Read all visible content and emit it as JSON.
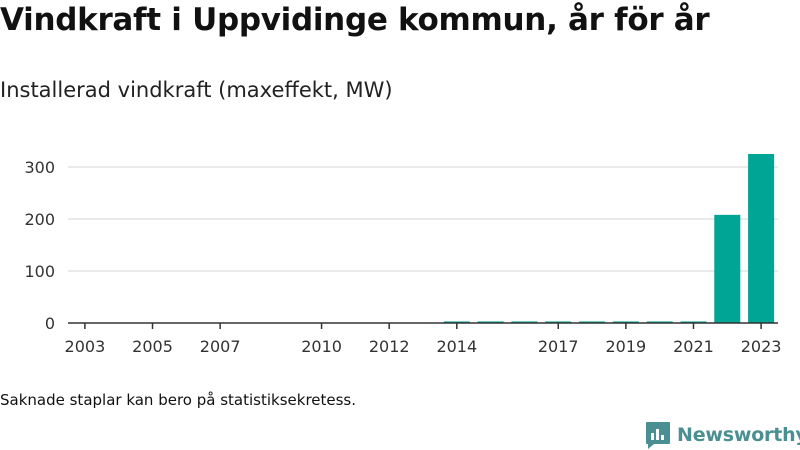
{
  "title": "Vindkraft i Uppvidinge kommun, år för år",
  "subtitle": "Installerad vindkraft (maxeffekt, MW)",
  "footnote": "Saknade staplar kan bero på statistiksekretess.",
  "brand": {
    "name": "Newsworthy",
    "icon": "newsworthy-logo-icon"
  },
  "colors": {
    "bar": "#00a595",
    "grid": "#dddddd",
    "axis": "#333333",
    "text": "#333333"
  },
  "chart_data": {
    "type": "bar",
    "categories": [
      "2003",
      "2004",
      "2005",
      "2006",
      "2007",
      "2008",
      "2009",
      "2010",
      "2011",
      "2012",
      "2013",
      "2014",
      "2015",
      "2016",
      "2017",
      "2018",
      "2019",
      "2020",
      "2021",
      "2022",
      "2023"
    ],
    "values": [
      0,
      0,
      0,
      0,
      0,
      0,
      0,
      0,
      0,
      0,
      0,
      3,
      3,
      3,
      3,
      3,
      3,
      3,
      3,
      208,
      325
    ],
    "x_tick_labels": [
      "2003",
      "2005",
      "2007",
      "2010",
      "2012",
      "2014",
      "2017",
      "2019",
      "2021",
      "2023"
    ],
    "y_ticks": [
      0,
      100,
      200,
      300
    ],
    "ylim": [
      0,
      340
    ],
    "xlabel": "",
    "ylabel": "",
    "grid": true
  }
}
